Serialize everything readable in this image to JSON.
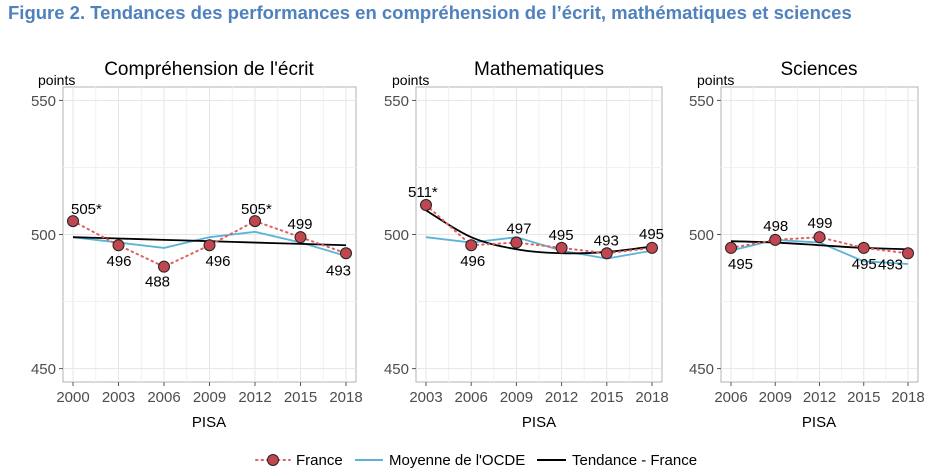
{
  "figure_title": "Figure 2. Tendances des performances en compréhension de l’écrit, mathématiques et sciences",
  "colors": {
    "france": "#c0474f",
    "france_dots": "#e0605f",
    "oecd": "#5bb4d8",
    "trend": "#000000",
    "title": "#4f81bd"
  },
  "legend": {
    "france": "France",
    "oecd": "Moyenne de l'OCDE",
    "trend": "Tendance - France"
  },
  "chart_data": [
    {
      "type": "line",
      "title": "Compréhension de l'écrit",
      "ylabel": "points",
      "xlabel": "PISA",
      "ylim": [
        445,
        555
      ],
      "yticks": [
        450,
        500,
        550
      ],
      "x": [
        2000,
        2003,
        2006,
        2009,
        2012,
        2015,
        2018
      ],
      "series": [
        {
          "name": "France",
          "values": [
            505,
            496,
            488,
            496,
            505,
            499,
            493
          ],
          "labels": [
            "505*",
            "496",
            "488",
            "496",
            "505*",
            "499",
            "493"
          ]
        },
        {
          "name": "Moyenne de l'OCDE",
          "values": [
            499,
            497,
            495,
            499,
            501,
            497,
            492
          ]
        },
        {
          "name": "Tendance - France",
          "values": [
            499,
            498.5,
            498,
            497.5,
            497,
            496.5,
            496
          ]
        }
      ]
    },
    {
      "type": "line",
      "title": "Mathematiques",
      "ylabel": "points",
      "xlabel": "PISA",
      "ylim": [
        445,
        555
      ],
      "yticks": [
        450,
        500,
        550
      ],
      "x": [
        2003,
        2006,
        2009,
        2012,
        2015,
        2018
      ],
      "series": [
        {
          "name": "France",
          "values": [
            511,
            496,
            497,
            495,
            493,
            495
          ],
          "labels": [
            "511*",
            "496",
            "497",
            "495",
            "493",
            "495"
          ]
        },
        {
          "name": "Moyenne de l'OCDE",
          "values": [
            499,
            497,
            499,
            494,
            491,
            494
          ]
        },
        {
          "name": "Tendance - France",
          "values": [
            509,
            499,
            494.5,
            493,
            493.5,
            495.5
          ]
        }
      ]
    },
    {
      "type": "line",
      "title": "Sciences",
      "ylabel": "points",
      "xlabel": "PISA",
      "ylim": [
        445,
        555
      ],
      "yticks": [
        450,
        500,
        550
      ],
      "x": [
        2006,
        2009,
        2012,
        2015,
        2018
      ],
      "series": [
        {
          "name": "France",
          "values": [
            495,
            498,
            499,
            495,
            493
          ],
          "labels": [
            "495",
            "498",
            "499",
            "495",
            "493"
          ]
        },
        {
          "name": "Moyenne de l'OCDE",
          "values": [
            494,
            498,
            497,
            490,
            489
          ]
        },
        {
          "name": "Tendance - France",
          "values": [
            497.5,
            497,
            496,
            495,
            494.5
          ]
        }
      ]
    }
  ]
}
